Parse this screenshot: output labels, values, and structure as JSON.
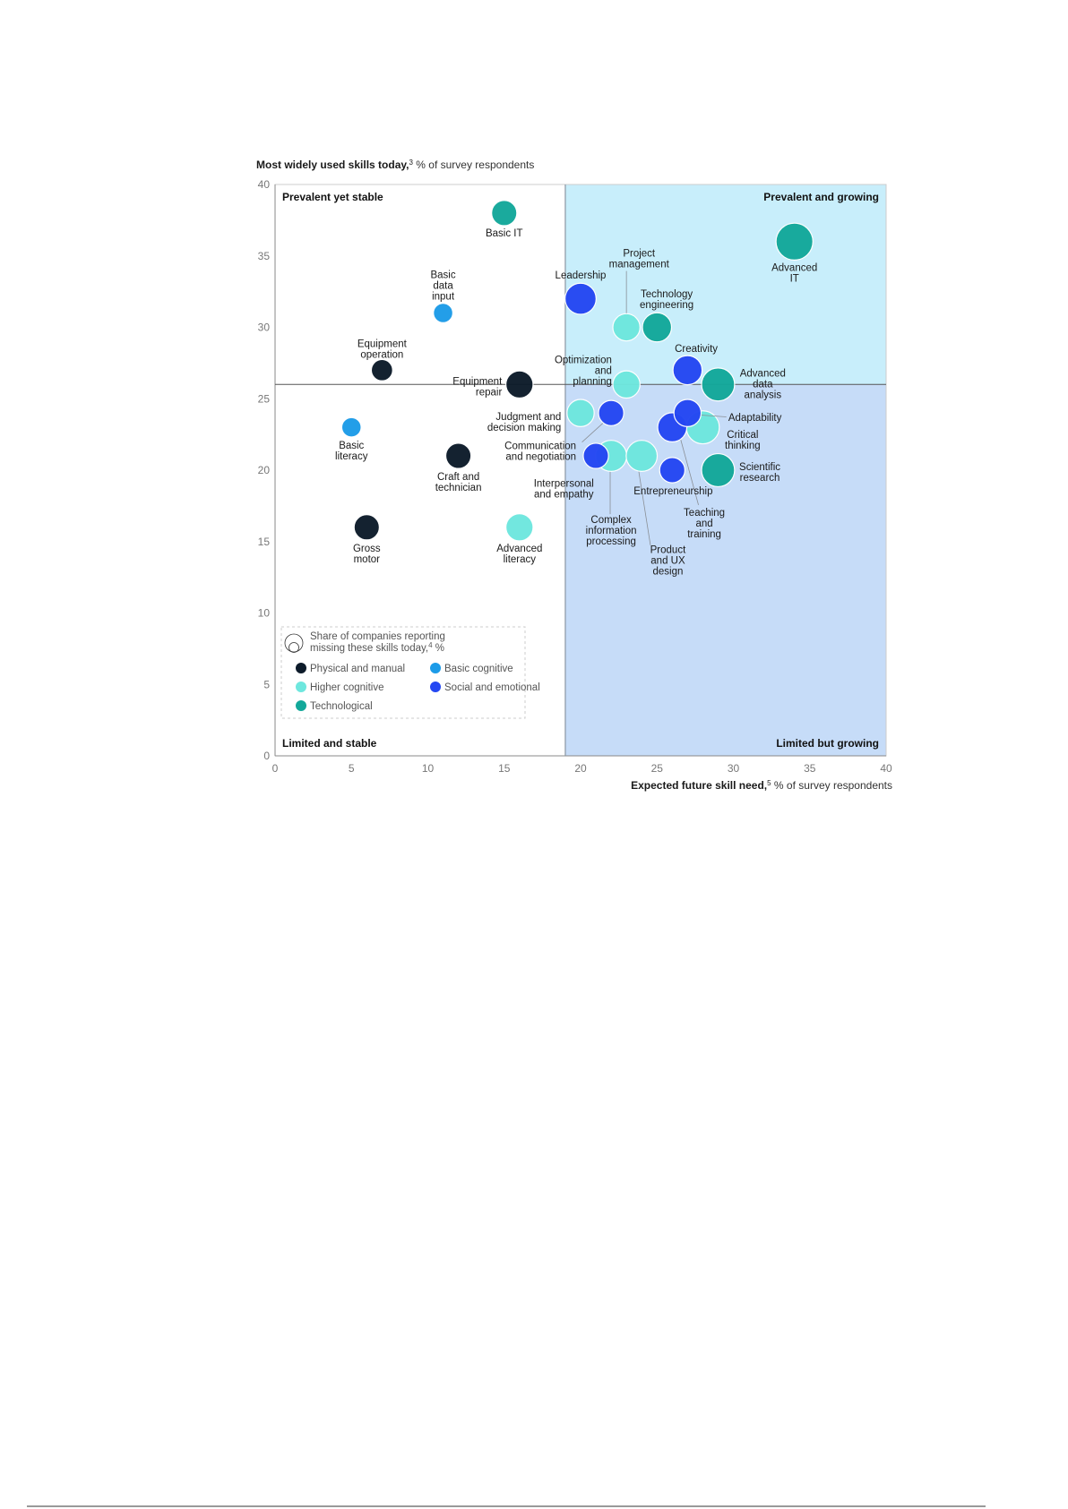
{
  "chart_data": {
    "type": "scatter",
    "subtype": "bubble",
    "title": {
      "bold": "Most widely used skills today,",
      "sup": "3",
      "rest": " % of survey respondents"
    },
    "xlabel": {
      "bold": "Expected future skill need,",
      "sup": "5",
      "rest": " % of survey respondents"
    },
    "xlim": [
      0,
      40
    ],
    "ylim": [
      0,
      40
    ],
    "x_ticks": [
      "0",
      "5",
      "10",
      "15",
      "20",
      "25",
      "30",
      "35",
      "40"
    ],
    "y_ticks": [
      "0",
      "5",
      "10",
      "15",
      "20",
      "25",
      "30",
      "35",
      "40"
    ],
    "divider_x": 19,
    "divider_y": 26,
    "quadrants": {
      "top_left": "Prevalent yet stable",
      "top_right": "Prevalent and growing",
      "bottom_left": "Limited and stable",
      "bottom_right": "Limited but growing"
    },
    "quadrant_colors": {
      "top_right": "#c8eefb",
      "bottom_right": "#c6dcf8"
    },
    "size_legend": {
      "line1": "Share of companies reporting",
      "line2": "missing these skills today,",
      "sup": "4",
      "unit": " %"
    },
    "categories": [
      {
        "key": "physical",
        "name": "Physical and manual",
        "color": "#0d1b2a"
      },
      {
        "key": "basic",
        "name": "Basic cognitive",
        "color": "#1c9be8"
      },
      {
        "key": "higher",
        "name": "Higher cognitive",
        "color": "#6ee7de"
      },
      {
        "key": "social",
        "name": "Social and emotional",
        "color": "#2447f2"
      },
      {
        "key": "tech",
        "name": "Technological",
        "color": "#13a89a"
      }
    ],
    "points": [
      {
        "label": [
          "Basic IT"
        ],
        "category": "tech",
        "x": 15,
        "y": 38,
        "size": 13
      },
      {
        "label": [
          "Basic",
          "data",
          "input"
        ],
        "category": "basic",
        "x": 11,
        "y": 31,
        "size": 10
      },
      {
        "label": [
          "Equipment",
          "operation"
        ],
        "category": "physical",
        "x": 7,
        "y": 27,
        "size": 11
      },
      {
        "label": [
          "Equipment",
          "repair"
        ],
        "category": "physical",
        "x": 16,
        "y": 26,
        "size": 14
      },
      {
        "label": [
          "Basic",
          "literacy"
        ],
        "category": "basic",
        "x": 5,
        "y": 23,
        "size": 10
      },
      {
        "label": [
          "Craft and",
          "technician"
        ],
        "category": "physical",
        "x": 12,
        "y": 21,
        "size": 13
      },
      {
        "label": [
          "Gross",
          "motor"
        ],
        "category": "physical",
        "x": 6,
        "y": 16,
        "size": 13
      },
      {
        "label": [
          "Advanced",
          "literacy"
        ],
        "category": "higher",
        "x": 16,
        "y": 16,
        "size": 14
      },
      {
        "label": [
          "Leadership"
        ],
        "category": "social",
        "x": 20,
        "y": 32,
        "size": 16
      },
      {
        "label": [
          "Project",
          "management"
        ],
        "category": "higher",
        "x": 23,
        "y": 30,
        "size": 14
      },
      {
        "label": [
          "Technology",
          "engineering"
        ],
        "category": "tech",
        "x": 25,
        "y": 30,
        "size": 15
      },
      {
        "label": [
          "Advanced",
          "IT"
        ],
        "category": "tech",
        "x": 34,
        "y": 36,
        "size": 19
      },
      {
        "label": [
          "Optimization",
          "and",
          "planning"
        ],
        "category": "higher",
        "x": 23,
        "y": 26,
        "size": 14
      },
      {
        "label": [
          "Creativity"
        ],
        "category": "social",
        "x": 27,
        "y": 27,
        "size": 15
      },
      {
        "label": [
          "Advanced",
          "data",
          "analysis"
        ],
        "category": "tech",
        "x": 29,
        "y": 26,
        "size": 17
      },
      {
        "label": [
          "Judgment and",
          "decision making"
        ],
        "category": "higher",
        "x": 20,
        "y": 24,
        "size": 14
      },
      {
        "label": [
          "Communication",
          "and negotiation"
        ],
        "category": "social",
        "x": 22,
        "y": 24,
        "size": 13
      },
      {
        "label": [
          "Critical",
          "thinking"
        ],
        "category": "higher",
        "x": 28,
        "y": 23,
        "size": 17
      },
      {
        "label": [
          "Teaching",
          "and",
          "training"
        ],
        "category": "social",
        "x": 26,
        "y": 23,
        "size": 15
      },
      {
        "label": [
          "Adaptability"
        ],
        "category": "social",
        "x": 27,
        "y": 24,
        "size": 14
      },
      {
        "label": [
          "Complex",
          "information",
          "processing"
        ],
        "category": "higher",
        "x": 22,
        "y": 21,
        "size": 16
      },
      {
        "label": [
          "Interpersonal",
          "and empathy"
        ],
        "category": "social",
        "x": 21,
        "y": 21,
        "size": 13
      },
      {
        "label": [
          "Product",
          "and UX",
          "design"
        ],
        "category": "higher",
        "x": 24,
        "y": 21,
        "size": 16
      },
      {
        "label": [
          "Entrepreneurship"
        ],
        "category": "social",
        "x": 26,
        "y": 20,
        "size": 13
      },
      {
        "label": [
          "Scientific",
          "research"
        ],
        "category": "tech",
        "x": 29,
        "y": 20,
        "size": 17
      }
    ]
  }
}
